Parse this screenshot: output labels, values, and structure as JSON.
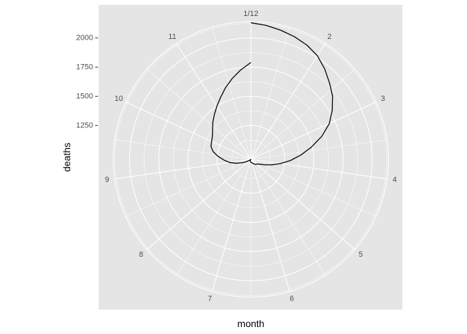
{
  "chart_data": {
    "type": "line",
    "coord": "polar",
    "xlabel": "month",
    "ylabel": "deaths",
    "x_tick_labels": [
      "1/12",
      "2",
      "3",
      "4",
      "5",
      "6",
      "7",
      "8",
      "9",
      "10",
      "11"
    ],
    "y_tick_values": [
      1250,
      1500,
      1750,
      2000
    ],
    "y_tick_labels": [
      "1250",
      "1500",
      "1750",
      "2000"
    ],
    "x_range": [
      1,
      12
    ],
    "y_range": [
      960,
      2140
    ],
    "grid": true,
    "colors": {
      "panel": "#e5e5e5",
      "grid": "#ffffff",
      "line": "#000000"
    },
    "series": [
      {
        "x": [
          1,
          1.2,
          1.4,
          1.6,
          1.8,
          2,
          2.2,
          2.4,
          2.6,
          2.8,
          3,
          3.2,
          3.4,
          3.6,
          3.8,
          4,
          4.2,
          4.4,
          4.6,
          4.8,
          5,
          5.2,
          5.4,
          5.6,
          5.8,
          6,
          6.2,
          6.4,
          6.6,
          6.8,
          7,
          7.2,
          7.4,
          7.6,
          7.8,
          8,
          8.2,
          8.4,
          8.6,
          8.8,
          9,
          9.2,
          9.4,
          9.6,
          9.8,
          10,
          10.2,
          10.4,
          10.6,
          10.8,
          11,
          11.2,
          11.4,
          11.6,
          11.8,
          12
        ],
        "y": [
          2130,
          2115,
          2095,
          2075,
          2050,
          2015,
          1960,
          1900,
          1845,
          1775,
          1700,
          1600,
          1490,
          1390,
          1300,
          1215,
          1145,
          1090,
          1050,
          1030,
          1025,
          1020,
          1010,
          1003,
          996,
          990,
          988,
          986,
          983,
          980,
          977,
          973,
          968,
          965,
          962,
          960,
          975,
          1005,
          1040,
          1090,
          1145,
          1190,
          1240,
          1290,
          1320,
          1330,
          1345,
          1375,
          1415,
          1455,
          1500,
          1550,
          1610,
          1670,
          1730,
          1790
        ]
      }
    ]
  }
}
